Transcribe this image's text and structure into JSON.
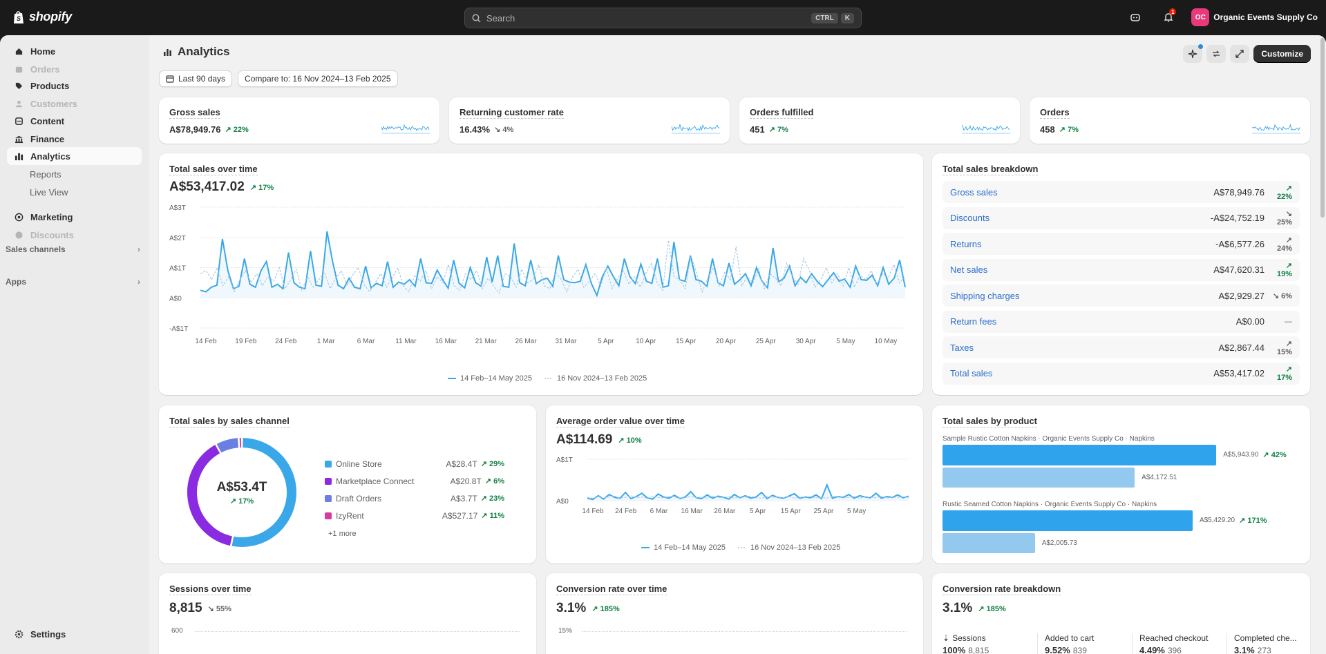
{
  "topbar": {
    "brand": "shopify",
    "search_placeholder": "Search",
    "shortcut_ctrl": "CTRL",
    "shortcut_k": "K",
    "notification_count": "1",
    "avatar_initials": "OC",
    "store_name": "Organic Events Supply Co"
  },
  "sidebar": {
    "items": [
      {
        "label": "Home",
        "icon": "home-icon"
      },
      {
        "label": "Orders",
        "icon": "orders-icon",
        "disabled": true
      },
      {
        "label": "Products",
        "icon": "tag-icon"
      },
      {
        "label": "Customers",
        "icon": "person-icon",
        "disabled": true
      },
      {
        "label": "Content",
        "icon": "content-icon"
      },
      {
        "label": "Finance",
        "icon": "bank-icon"
      },
      {
        "label": "Analytics",
        "icon": "chart-icon",
        "active": true
      }
    ],
    "analytics_sub": [
      "Reports",
      "Live View"
    ],
    "items2": [
      {
        "label": "Marketing",
        "icon": "target-icon"
      },
      {
        "label": "Discounts",
        "icon": "discount-icon",
        "disabled": true
      }
    ],
    "sections": [
      "Sales channels",
      "Apps"
    ],
    "settings": "Settings"
  },
  "header": {
    "title": "Analytics",
    "customize": "Customize",
    "date_range": "Last 90 days",
    "compare": "Compare to: 16 Nov 2024–13 Feb 2025"
  },
  "kpis": [
    {
      "title": "Gross sales",
      "value": "A$78,949.76",
      "change": "22%",
      "dir": "up"
    },
    {
      "title": "Returning customer rate",
      "value": "16.43%",
      "change": "4%",
      "dir": "down"
    },
    {
      "title": "Orders fulfilled",
      "value": "451",
      "change": "7%",
      "dir": "up"
    },
    {
      "title": "Orders",
      "value": "458",
      "change": "7%",
      "dir": "up"
    }
  ],
  "total_sales": {
    "title": "Total sales over time",
    "value": "A$53,417.02",
    "change": "17%",
    "legend_current": "14 Feb–14 May 2025",
    "legend_prev": "16 Nov 2024–13 Feb 2025"
  },
  "breakdown": {
    "title": "Total sales breakdown",
    "rows": [
      {
        "label": "Gross sales",
        "amount": "A$78,949.76",
        "change": "22%",
        "dir": "up"
      },
      {
        "label": "Discounts",
        "amount": "-A$24,752.19",
        "change": "25%",
        "dir": "down"
      },
      {
        "label": "Returns",
        "amount": "-A$6,577.26",
        "change": "24%",
        "dir": "up-gray"
      },
      {
        "label": "Net sales",
        "amount": "A$47,620.31",
        "change": "19%",
        "dir": "up"
      },
      {
        "label": "Shipping charges",
        "amount": "A$2,929.27",
        "change": "6%",
        "dir": "down"
      },
      {
        "label": "Return fees",
        "amount": "A$0.00",
        "change": "—",
        "dir": "none"
      },
      {
        "label": "Taxes",
        "amount": "A$2,867.44",
        "change": "15%",
        "dir": "up-gray"
      },
      {
        "label": "Total sales",
        "amount": "A$53,417.02",
        "change": "17%",
        "dir": "up"
      }
    ]
  },
  "by_channel": {
    "title": "Total sales by sales channel",
    "center_value": "A$53.4T",
    "center_change": "17%",
    "more": "+1 more",
    "rows": [
      {
        "name": "Online Store",
        "value": "A$28.4T",
        "change": "29%",
        "color": "#3aa8e8"
      },
      {
        "name": "Marketplace Connect",
        "value": "A$20.8T",
        "change": "6%",
        "color": "#8a2be2"
      },
      {
        "name": "Draft Orders",
        "value": "A$3.7T",
        "change": "23%",
        "color": "#6b7fe3"
      },
      {
        "name": "IzyRent",
        "value": "A$527.17",
        "change": "11%",
        "color": "#d63aa3"
      }
    ]
  },
  "aov": {
    "title": "Average order value over time",
    "value": "A$114.69",
    "change": "10%",
    "legend_current": "14 Feb–14 May 2025",
    "legend_prev": "16 Nov 2024–13 Feb 2025"
  },
  "by_product": {
    "title": "Total sales by product",
    "products": [
      {
        "label": "Sample Rustic Cotton Napkins · Organic Events Supply Co · Napkins",
        "current": "A$5,943.90",
        "previous": "A$4,172.51",
        "change": "42%",
        "current_value": 5943.9,
        "previous_value": 4172.51
      },
      {
        "label": "Rustic Seamed Cotton Napkins · Organic Events Supply Co · Napkins",
        "current": "A$5,429.20",
        "previous": "A$2,005.73",
        "change": "171%",
        "current_value": 5429.2,
        "previous_value": 2005.73
      }
    ]
  },
  "sessions": {
    "title": "Sessions over time",
    "value": "8,815",
    "change": "55%",
    "tick": "600"
  },
  "conversion": {
    "title": "Conversion rate over time",
    "value": "3.1%",
    "change": "185%",
    "tick": "15%"
  },
  "conv_breakdown": {
    "title": "Conversion rate breakdown",
    "value": "3.1%",
    "change": "185%",
    "steps": [
      {
        "label": "Sessions",
        "pct": "100%",
        "count": "8,815"
      },
      {
        "label": "Added to cart",
        "pct": "9.52%",
        "count": "839"
      },
      {
        "label": "Reached checkout",
        "pct": "4.49%",
        "count": "396"
      },
      {
        "label": "Completed che...",
        "pct": "3.1%",
        "count": "273"
      }
    ]
  },
  "chart_data": [
    {
      "type": "line",
      "title": "Total sales over time",
      "ylim": [
        -1000,
        3000
      ],
      "y_ticks": [
        "A$3T",
        "A$2T",
        "A$1T",
        "A$0",
        "-A$1T"
      ],
      "x_ticks": [
        "14 Feb",
        "19 Feb",
        "24 Feb",
        "1 Mar",
        "6 Mar",
        "11 Mar",
        "16 Mar",
        "21 Mar",
        "26 Mar",
        "31 Mar",
        "5 Apr",
        "10 Apr",
        "15 Apr",
        "20 Apr",
        "25 Apr",
        "30 Apr",
        "5 May",
        "10 May"
      ],
      "series": [
        {
          "name": "14 Feb–14 May 2025",
          "values": [
            250,
            200,
            350,
            420,
            1950,
            900,
            300,
            380,
            1300,
            450,
            350,
            900,
            1200,
            350,
            450,
            300,
            1500,
            500,
            350,
            300,
            1550,
            420,
            380,
            2200,
            1200,
            420,
            300,
            650,
            350,
            300,
            1050,
            330,
            480,
            400,
            1200,
            350,
            520,
            450,
            600,
            380,
            1300,
            500,
            480,
            920,
            600,
            320,
            1250,
            480,
            330,
            1000,
            500,
            380,
            1350,
            520,
            1400,
            380,
            350,
            1800,
            500,
            400,
            1250,
            470,
            600,
            650,
            380,
            1400,
            600,
            520,
            500,
            550,
            1100,
            480,
            80,
            700,
            1050,
            700,
            400,
            1300,
            700,
            470,
            1120,
            550,
            480,
            1300,
            350,
            400,
            1850,
            600,
            550,
            1400,
            600,
            550,
            380,
            1300,
            500,
            400,
            1150,
            450,
            600,
            800,
            400,
            1000,
            550,
            330,
            1650,
            530,
            650,
            1050,
            400,
            680,
            500,
            800,
            550,
            370,
            600,
            830,
            550,
            620,
            350,
            1050,
            600,
            580,
            750,
            400,
            1000,
            450,
            650,
            1250,
            350
          ]
        },
        {
          "name": "16 Nov 2024–13 Feb 2025",
          "values": [
            800,
            900,
            600,
            1000,
            400,
            700,
            200,
            600,
            900,
            500,
            800,
            400,
            700,
            550,
            1000,
            300,
            600,
            950,
            250,
            700,
            350,
            600,
            850,
            300,
            650,
            900,
            400,
            750,
            1000,
            450,
            200,
            500,
            800,
            350,
            650,
            1000,
            400,
            200,
            750,
            550,
            900,
            300,
            700,
            500,
            1100,
            400,
            250,
            800,
            600,
            900,
            300,
            650,
            400,
            150,
            800,
            700,
            350,
            950,
            500,
            600,
            1100,
            400,
            300,
            850,
            600,
            200,
            700,
            950,
            350,
            550,
            800,
            400,
            1000,
            300,
            650,
            900,
            450,
            700,
            350,
            800,
            1150,
            500,
            250,
            1900,
            700,
            600,
            300,
            1400,
            800,
            200,
            650,
            1000,
            400,
            850,
            600,
            1700,
            400,
            700,
            500,
            950,
            300,
            800,
            650,
            400,
            1150,
            700,
            450,
            1300,
            900,
            350,
            600,
            1000,
            500,
            800,
            400,
            1000,
            350,
            750,
            600,
            900,
            450,
            800,
            650,
            1100,
            500,
            700
          ]
        }
      ]
    },
    {
      "type": "line",
      "title": "Average order value over time",
      "ylim": [
        0,
        1000
      ],
      "y_ticks": [
        "A$1T",
        "A$0"
      ],
      "x_ticks": [
        "14 Feb",
        "24 Feb",
        "6 Mar",
        "16 Mar",
        "26 Mar",
        "5 Apr",
        "15 Apr",
        "25 Apr",
        "5 May"
      ],
      "series": [
        {
          "name": "14 Feb–14 May 2025",
          "values": [
            60,
            30,
            120,
            40,
            150,
            80,
            60,
            200,
            50,
            100,
            180,
            70,
            40,
            160,
            90,
            60,
            130,
            50,
            90,
            220,
            70,
            50,
            140,
            60,
            110,
            80,
            40,
            150,
            70,
            120,
            60,
            90,
            200,
            50,
            130,
            80,
            60,
            110,
            170,
            60,
            90,
            70,
            140,
            50,
            380,
            60,
            100,
            80,
            150,
            60,
            120,
            90,
            70,
            180,
            60,
            100,
            80,
            140,
            70,
            110
          ]
        },
        {
          "name": "16 Nov 2024–13 Feb 2025",
          "values": [
            80,
            60,
            100,
            70,
            90,
            110,
            60,
            80,
            120,
            70,
            90,
            60,
            100,
            80,
            70,
            110,
            90,
            60,
            80,
            100,
            70,
            90,
            60,
            110,
            80,
            70,
            100,
            60,
            90,
            80,
            110,
            70,
            60,
            100,
            80,
            90,
            70,
            110,
            60,
            80,
            90,
            100,
            70,
            80,
            60,
            110,
            90,
            70,
            80,
            100,
            60,
            90,
            80,
            70,
            110,
            60,
            90,
            80,
            100,
            70
          ]
        }
      ]
    },
    {
      "type": "pie",
      "title": "Total sales by sales channel",
      "categories": [
        "Online Store",
        "Marketplace Connect",
        "Draft Orders",
        "IzyRent"
      ],
      "values": [
        28400,
        20800,
        3700,
        527.17
      ]
    },
    {
      "type": "bar",
      "title": "Total sales by product",
      "categories": [
        "Sample Rustic Cotton Napkins · Organic Events Supply Co · Napkins",
        "Rustic Seamed Cotton Napkins · Organic Events Supply Co · Napkins"
      ],
      "series": [
        {
          "name": "14 Feb–14 May 2025",
          "values": [
            5943.9,
            5429.2
          ]
        },
        {
          "name": "16 Nov 2024–13 Feb 2025",
          "values": [
            4172.51,
            2005.73
          ]
        }
      ]
    }
  ],
  "colors": {
    "line_current": "#3aa8e8",
    "line_prev": "#a8c9e8",
    "bar_current": "#2fa3ec",
    "bar_prev": "#93c9ef",
    "up": "#108043"
  }
}
